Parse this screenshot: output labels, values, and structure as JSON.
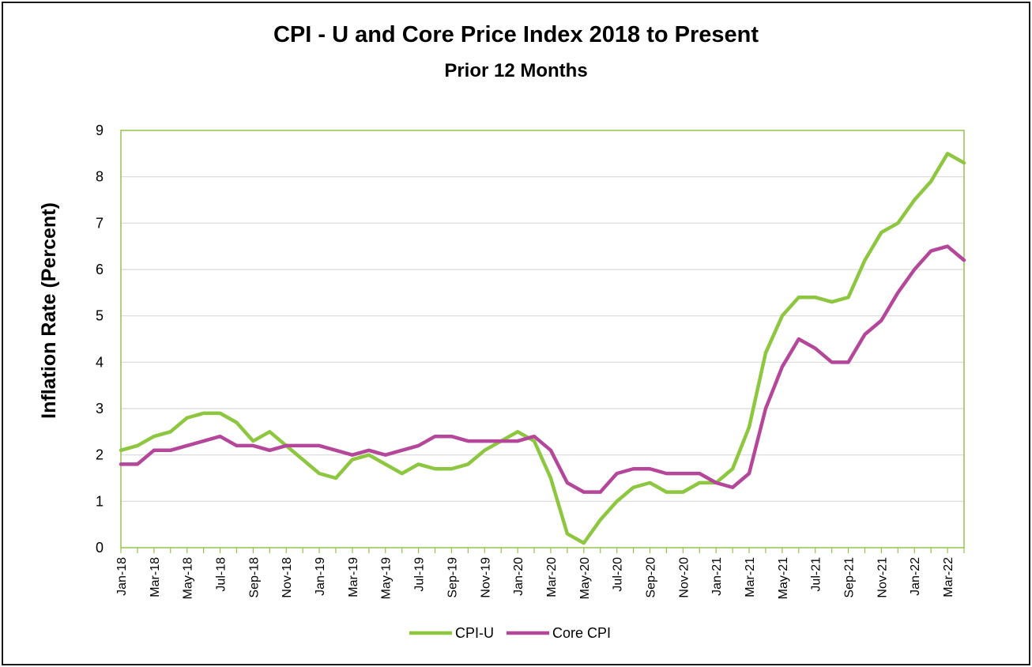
{
  "chart_data": {
    "type": "line",
    "title": "CPI - U and Core Price Index 2018 to Present",
    "subtitle": "Prior 12 Months",
    "ylabel": "Inflation Rate (Percent)",
    "xlabel": "",
    "ylim": [
      0,
      9
    ],
    "yticks": [
      0,
      1,
      2,
      3,
      4,
      5,
      6,
      7,
      8,
      9
    ],
    "grid": true,
    "legend_position": "bottom",
    "x": [
      "Jan-18",
      "Feb-18",
      "Mar-18",
      "Apr-18",
      "May-18",
      "Jun-18",
      "Jul-18",
      "Aug-18",
      "Sep-18",
      "Oct-18",
      "Nov-18",
      "Dec-18",
      "Jan-19",
      "Feb-19",
      "Mar-19",
      "Apr-19",
      "May-19",
      "Jun-19",
      "Jul-19",
      "Aug-19",
      "Sep-19",
      "Oct-19",
      "Nov-19",
      "Dec-19",
      "Jan-20",
      "Feb-20",
      "Mar-20",
      "Apr-20",
      "May-20",
      "Jun-20",
      "Jul-20",
      "Aug-20",
      "Sep-20",
      "Oct-20",
      "Nov-20",
      "Dec-20",
      "Jan-21",
      "Feb-21",
      "Mar-21",
      "Apr-21",
      "May-21",
      "Jun-21",
      "Jul-21",
      "Aug-21",
      "Sep-21",
      "Oct-21",
      "Nov-21",
      "Dec-21",
      "Jan-22",
      "Feb-22",
      "Mar-22",
      "Apr-22"
    ],
    "x_tick_labels": [
      "Jan-18",
      "Mar-18",
      "May-18",
      "Jul-18",
      "Sep-18",
      "Nov-18",
      "Jan-19",
      "Mar-19",
      "May-19",
      "Jul-19",
      "Sep-19",
      "Nov-19",
      "Jan-20",
      "Mar-20",
      "May-20",
      "Jul-20",
      "Sep-20",
      "Nov-20",
      "Jan-21",
      "Mar-21",
      "May-21",
      "Jul-21",
      "Sep-21",
      "Nov-21",
      "Jan-22",
      "Mar-22"
    ],
    "series": [
      {
        "name": "CPI-U",
        "color": "#8dc63f",
        "values": [
          2.1,
          2.2,
          2.4,
          2.5,
          2.8,
          2.9,
          2.9,
          2.7,
          2.3,
          2.5,
          2.2,
          1.9,
          1.6,
          1.5,
          1.9,
          2.0,
          1.8,
          1.6,
          1.8,
          1.7,
          1.7,
          1.8,
          2.1,
          2.3,
          2.5,
          2.3,
          1.5,
          0.3,
          0.1,
          0.6,
          1.0,
          1.3,
          1.4,
          1.2,
          1.2,
          1.4,
          1.4,
          1.7,
          2.6,
          4.2,
          5.0,
          5.4,
          5.4,
          5.3,
          5.4,
          6.2,
          6.8,
          7.0,
          7.5,
          7.9,
          8.5,
          8.3
        ]
      },
      {
        "name": "Core CPI",
        "color": "#b5479b",
        "values": [
          1.8,
          1.8,
          2.1,
          2.1,
          2.2,
          2.3,
          2.4,
          2.2,
          2.2,
          2.1,
          2.2,
          2.2,
          2.2,
          2.1,
          2.0,
          2.1,
          2.0,
          2.1,
          2.2,
          2.4,
          2.4,
          2.3,
          2.3,
          2.3,
          2.3,
          2.4,
          2.1,
          1.4,
          1.2,
          1.2,
          1.6,
          1.7,
          1.7,
          1.6,
          1.6,
          1.6,
          1.4,
          1.3,
          1.6,
          3.0,
          3.9,
          4.5,
          4.3,
          4.0,
          4.0,
          4.6,
          4.9,
          5.5,
          6.0,
          6.4,
          6.5,
          6.2
        ]
      }
    ]
  }
}
